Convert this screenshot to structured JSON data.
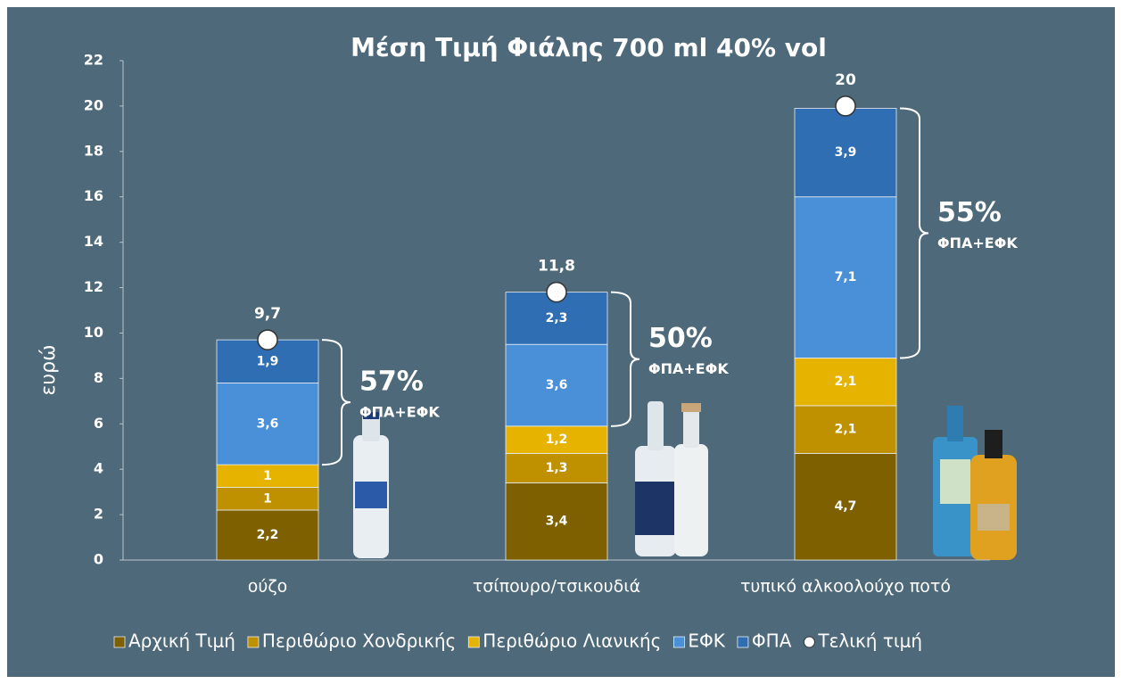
{
  "chart_data": {
    "type": "bar",
    "stacked": true,
    "title": "Μέση Τιμή Φιάλης 700 ml  40% vol",
    "ylabel": "ευρώ",
    "categories": [
      "ούζο",
      "τσίπουρο/τσικουδιά",
      "τυπικό αλκοολούχο ποτό"
    ],
    "series": [
      {
        "name": "Αρχική Τιμή",
        "color": "#7f6000",
        "values": [
          2.2,
          3.4,
          4.7
        ],
        "value_labels": [
          "2,2",
          "3,4",
          "4,7"
        ]
      },
      {
        "name": "Περιθώριο Χονδρικής",
        "color": "#bf9000",
        "values": [
          1,
          1.3,
          2.1
        ],
        "value_labels": [
          "1",
          "1,3",
          "2,1"
        ]
      },
      {
        "name": "Περιθώριο Λιανικής",
        "color": "#e6b400",
        "values": [
          1,
          1.2,
          2.1
        ],
        "value_labels": [
          "1",
          "1,2",
          "2,1"
        ]
      },
      {
        "name": "ΕΦΚ",
        "color": "#4a90d9",
        "values": [
          3.6,
          3.6,
          7.1
        ],
        "value_labels": [
          "3,6",
          "3,6",
          "7,1"
        ]
      },
      {
        "name": "ΦΠΑ",
        "color": "#2f6eb2",
        "values": [
          1.9,
          2.3,
          3.9
        ],
        "value_labels": [
          "1,9",
          "2,3",
          "3,9"
        ]
      },
      {
        "name": "Τελική τιμή",
        "color": "#ffffff",
        "type": "scatter",
        "values": [
          9.7,
          11.8,
          20
        ],
        "value_labels": [
          "9,7",
          "11,8",
          "20"
        ]
      }
    ],
    "annotations": [
      {
        "label": "57%",
        "note": "ΦΠΑ+ΕΦΚ"
      },
      {
        "label": "50%",
        "note": "ΦΠΑ+ΕΦΚ"
      },
      {
        "label": "55%",
        "note": "ΦΠΑ+ΕΦΚ"
      }
    ],
    "ylim": [
      0,
      22
    ],
    "yticks": [
      0,
      2,
      4,
      6,
      8,
      10,
      12,
      14,
      16,
      18,
      20,
      22
    ],
    "grid": false,
    "legend": "bottom"
  }
}
